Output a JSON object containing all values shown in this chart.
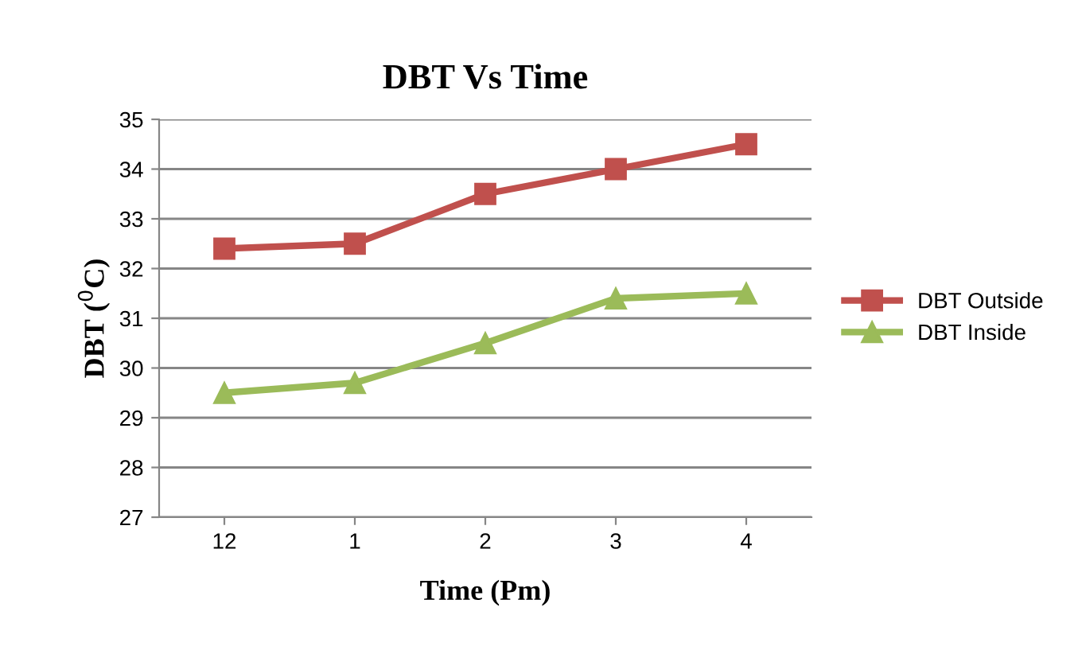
{
  "chart_data": {
    "type": "line",
    "title": "DBT Vs Time",
    "xlabel": "Time (Pm)",
    "ylabel": "DBT ($^{0}$C)",
    "categories": [
      "12",
      "1",
      "2",
      "3",
      "4"
    ],
    "series": [
      {
        "name": "DBT Outside",
        "color": "#c0504d",
        "marker": "square",
        "values": [
          32.4,
          32.5,
          33.5,
          34.0,
          34.5
        ]
      },
      {
        "name": "DBT Inside",
        "color": "#9bbb59",
        "marker": "triangle",
        "values": [
          29.5,
          29.7,
          30.5,
          31.4,
          31.5
        ]
      }
    ],
    "ylim": [
      27,
      35
    ],
    "yticks": [
      27,
      28,
      29,
      30,
      31,
      32,
      33,
      34,
      35
    ],
    "grid": "y",
    "legend": "right",
    "line_style": "solid"
  }
}
